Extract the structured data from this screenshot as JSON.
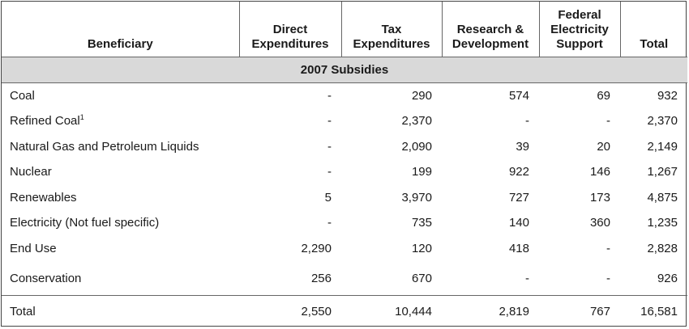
{
  "headers": {
    "beneficiary": "Beneficiary",
    "direct": [
      "Direct",
      "Expenditures"
    ],
    "tax": [
      "Tax",
      "Expenditures"
    ],
    "rd": [
      "Research &",
      "Development"
    ],
    "federal": [
      "Federal",
      "Electricity",
      "Support"
    ],
    "total": "Total"
  },
  "section_title": "2007 Subsidies",
  "rows": [
    {
      "name": "Coal",
      "sup": "",
      "direct": "-",
      "tax": "290",
      "rd": "574",
      "federal": "69",
      "total": "932"
    },
    {
      "name": "Refined Coal",
      "sup": "1",
      "direct": "-",
      "tax": "2,370",
      "rd": "-",
      "federal": "-",
      "total": "2,370"
    },
    {
      "name": "Natural Gas and Petroleum Liquids",
      "sup": "",
      "direct": "-",
      "tax": "2,090",
      "rd": "39",
      "federal": "20",
      "total": "2,149"
    },
    {
      "name": "Nuclear",
      "sup": "",
      "direct": "-",
      "tax": "199",
      "rd": "922",
      "federal": "146",
      "total": "1,267"
    },
    {
      "name": "Renewables",
      "sup": "",
      "direct": "5",
      "tax": "3,970",
      "rd": "727",
      "federal": "173",
      "total": "4,875"
    },
    {
      "name": "Electricity (Not fuel specific)",
      "sup": "",
      "direct": "-",
      "tax": "735",
      "rd": "140",
      "federal": "360",
      "total": "1,235"
    },
    {
      "name": "End Use",
      "sup": "",
      "direct": "2,290",
      "tax": "120",
      "rd": "418",
      "federal": "-",
      "total": "2,828"
    },
    {
      "name": "Conservation",
      "sup": "",
      "direct": "256",
      "tax": "670",
      "rd": "-",
      "federal": "-",
      "total": "926"
    }
  ],
  "total_row": {
    "name": "Total",
    "direct": "2,550",
    "tax": "10,444",
    "rd": "2,819",
    "federal": "767",
    "total": "16,581"
  }
}
